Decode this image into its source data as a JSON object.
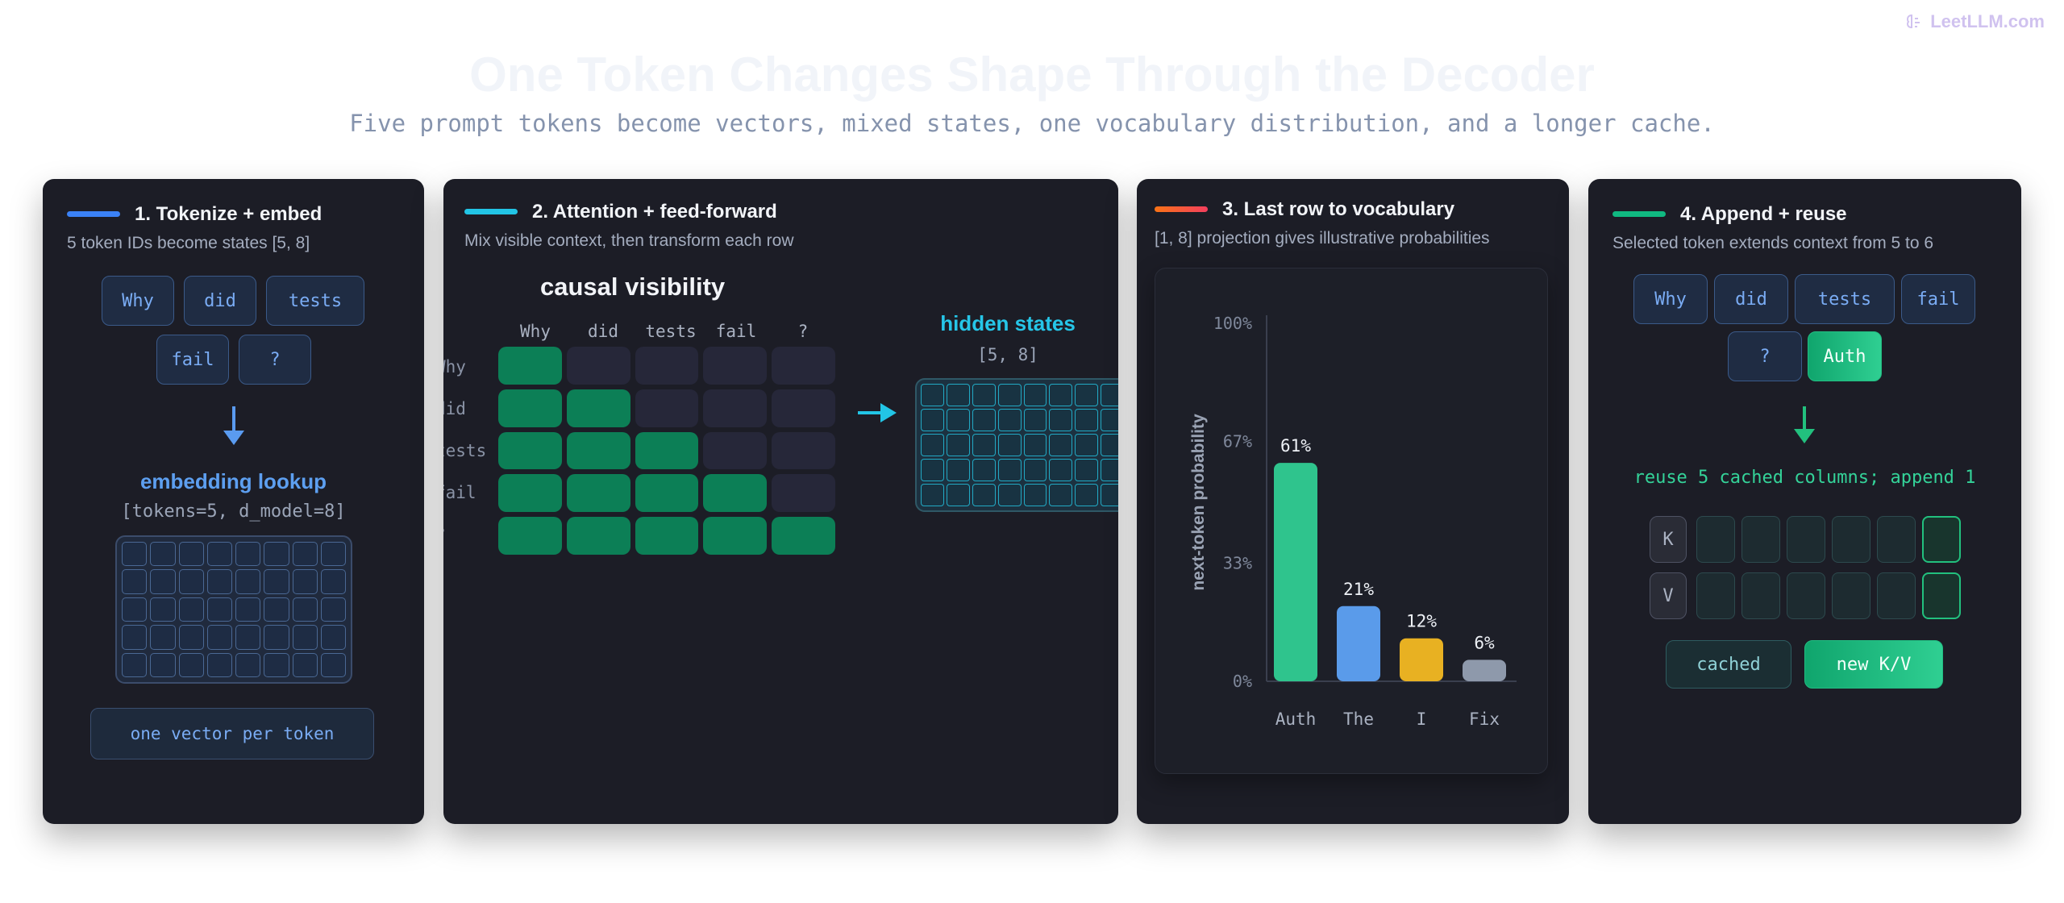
{
  "brand": {
    "name": "LeetLLM.com",
    "icon": "brain-icon"
  },
  "title": "One Token Changes Shape Through the Decoder",
  "subtitle": "Five prompt tokens become vectors, mixed states, one vocabulary distribution, and a longer cache.",
  "colors": {
    "step1": "#3b82f6",
    "step2": "#22c5e6",
    "step3": "#f97316",
    "step4": "#10b981",
    "attend": "#0c7f56",
    "masked": "#262739"
  },
  "panel1": {
    "title": "1. Tokenize + embed",
    "desc": "5 token IDs become states [5, 8]",
    "tokens": [
      "Why",
      "did",
      "tests",
      "fail",
      "?"
    ],
    "lookup_title": "embedding lookup",
    "lookup_shape": "[tokens=5, d_model=8]",
    "footer": "one vector per token"
  },
  "panel2": {
    "title": "2. Attention + feed-forward",
    "desc": "Mix visible context, then transform each row",
    "matrix_title": "causal visibility",
    "tokens": [
      "Why",
      "did",
      "tests",
      "fail",
      "?"
    ],
    "hidden_title": "hidden states",
    "hidden_shape": "[5, 8]"
  },
  "panel3": {
    "title": "3. Last row to vocabulary",
    "desc": "[1, 8] projection gives illustrative probabilities"
  },
  "chart_data": {
    "type": "bar",
    "categories": [
      "Auth",
      "The",
      "I",
      "Fix"
    ],
    "values": [
      61,
      21,
      12,
      6
    ],
    "value_labels": [
      "61%",
      "21%",
      "12%",
      "6%"
    ],
    "ylabel": "next-token probability",
    "ylim": [
      0,
      100
    ],
    "yticks": [
      "0%",
      "33%",
      "67%",
      "100%"
    ],
    "ytick_values": [
      0,
      33,
      67,
      100
    ],
    "bar_colors": [
      "#2fc48d",
      "#5a9bea",
      "#e8b122",
      "#8e99ab"
    ],
    "grid": false
  },
  "panel4": {
    "title": "4. Append + reuse",
    "desc": "Selected token extends context from 5 to 6",
    "tokens": [
      "Why",
      "did",
      "tests",
      "fail",
      "?"
    ],
    "new_token": "Auth",
    "reuse_text": "reuse 5 cached columns; append 1",
    "k_label": "K",
    "v_label": "V",
    "cached_label": "cached",
    "new_label": "new K/V"
  }
}
